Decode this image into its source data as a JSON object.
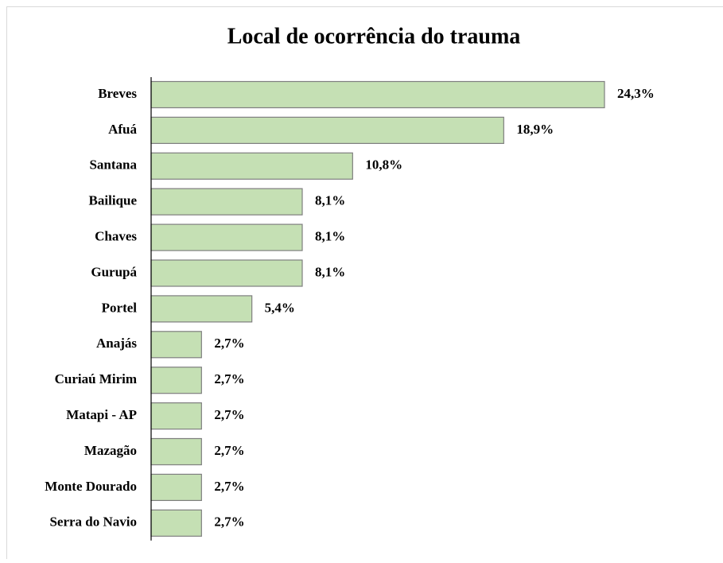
{
  "chart_data": {
    "type": "bar",
    "orientation": "horizontal",
    "title": "Local de ocorrência do trauma",
    "categories": [
      "Breves",
      "Afuá",
      "Santana",
      "Bailique",
      "Chaves",
      "Gurupá",
      "Portel",
      "Anajás",
      "Curiaú Mirim",
      "Matapi - AP",
      "Mazagão",
      "Monte Dourado",
      "Serra do Navio"
    ],
    "values": [
      24.3,
      18.9,
      10.8,
      8.1,
      8.1,
      8.1,
      5.4,
      2.7,
      2.7,
      2.7,
      2.7,
      2.7,
      2.7
    ],
    "value_labels": [
      "24,3%",
      "18,9%",
      "10,8%",
      "8,1%",
      "8,1%",
      "8,1%",
      "5,4%",
      "2,7%",
      "2,7%",
      "2,7%",
      "2,7%",
      "2,7%",
      "2,7%"
    ],
    "color": "#c5e0b4"
  }
}
